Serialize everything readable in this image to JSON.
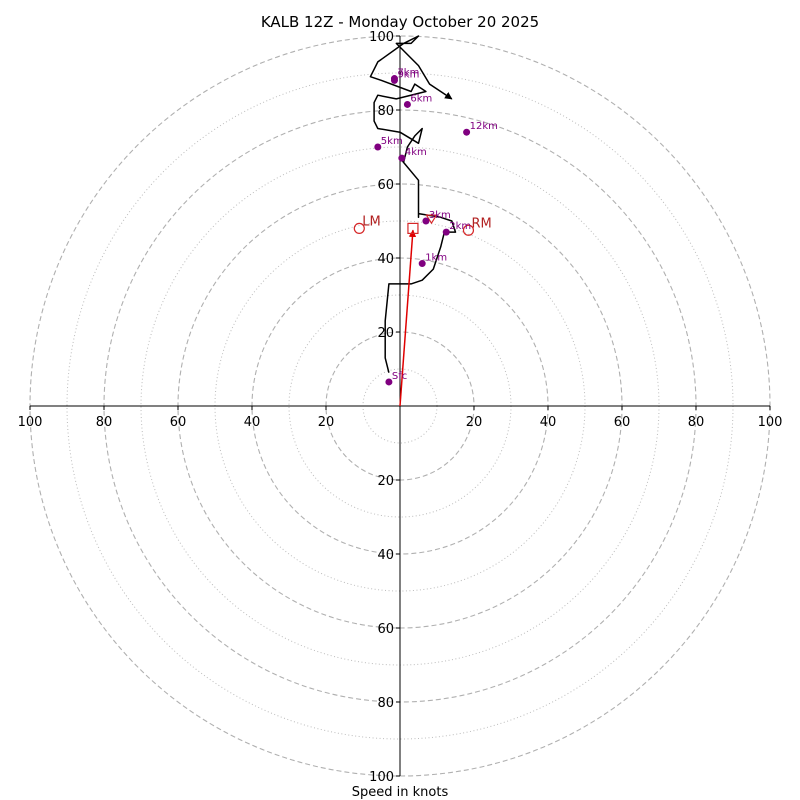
{
  "chart_data": {
    "type": "hodograph",
    "title": "KALB 12Z - Monday October 20 2025",
    "xlabel": "Speed in knots",
    "units": "knots",
    "xlim": [
      -100,
      100
    ],
    "ylim": [
      -100,
      100
    ],
    "rings_major": [
      20,
      40,
      60,
      80,
      100
    ],
    "rings_minor": [
      10,
      30,
      50,
      70,
      90
    ],
    "tick_labels": [
      "100",
      "80",
      "60",
      "40",
      "20"
    ],
    "hodograph_trace": [
      [
        -3,
        9
      ],
      [
        -4,
        13
      ],
      [
        -4,
        23
      ],
      [
        -3,
        33
      ],
      [
        3,
        33
      ],
      [
        6,
        34
      ],
      [
        9,
        37
      ],
      [
        11,
        43
      ],
      [
        12,
        47
      ],
      [
        15,
        47
      ],
      [
        14,
        50
      ],
      [
        11,
        51
      ],
      [
        5,
        52
      ],
      [
        5,
        51
      ],
      [
        5,
        61
      ],
      [
        0,
        67
      ],
      [
        1,
        66
      ],
      [
        2,
        70
      ],
      [
        4,
        73
      ],
      [
        6,
        75
      ],
      [
        5,
        71
      ],
      [
        0,
        74
      ],
      [
        -6,
        75
      ],
      [
        -7,
        77
      ],
      [
        -7,
        82
      ],
      [
        -6,
        84
      ],
      [
        -1,
        83
      ],
      [
        7,
        85
      ],
      [
        4,
        87
      ],
      [
        3,
        85
      ],
      [
        -5,
        88
      ],
      [
        -8,
        89
      ],
      [
        -6,
        93
      ],
      [
        1,
        98
      ],
      [
        5,
        100
      ],
      [
        3,
        98
      ],
      [
        -1,
        98
      ],
      [
        5,
        92
      ],
      [
        8,
        87
      ],
      [
        14,
        83
      ]
    ],
    "levels": [
      {
        "label": "Sfc",
        "u": -3,
        "v": 6.5
      },
      {
        "label": "1km",
        "u": 6,
        "v": 38.5
      },
      {
        "label": "2km",
        "u": 12.5,
        "v": 47
      },
      {
        "label": "3km",
        "u": 7,
        "v": 50
      },
      {
        "label": "4km",
        "u": 0.5,
        "v": 67
      },
      {
        "label": "5km",
        "u": -6,
        "v": 70
      },
      {
        "label": "6km",
        "u": 2,
        "v": 81.5
      },
      {
        "label": "7km",
        "u": -1.5,
        "v": 88.5
      },
      {
        "label": "9km",
        "u": -1.5,
        "v": 88
      },
      {
        "label": "12km",
        "u": 18,
        "v": 74
      }
    ],
    "storm_motion": {
      "bunkers_rm": {
        "label": "RM",
        "u": 18.5,
        "v": 47.5
      },
      "bunkers_lm": {
        "label": "LM",
        "u": -11,
        "v": 48
      },
      "mean_wind": {
        "u": 3.5,
        "v": 48
      },
      "shear_vector": {
        "u": 3.5,
        "v": 47.5
      },
      "deviant": {
        "u": 8.5,
        "v": 50.5
      }
    },
    "colors": {
      "trace": "#000000",
      "levels": "#800080",
      "storm_motion": "#d62728",
      "rings": "#b0b0b0"
    }
  }
}
